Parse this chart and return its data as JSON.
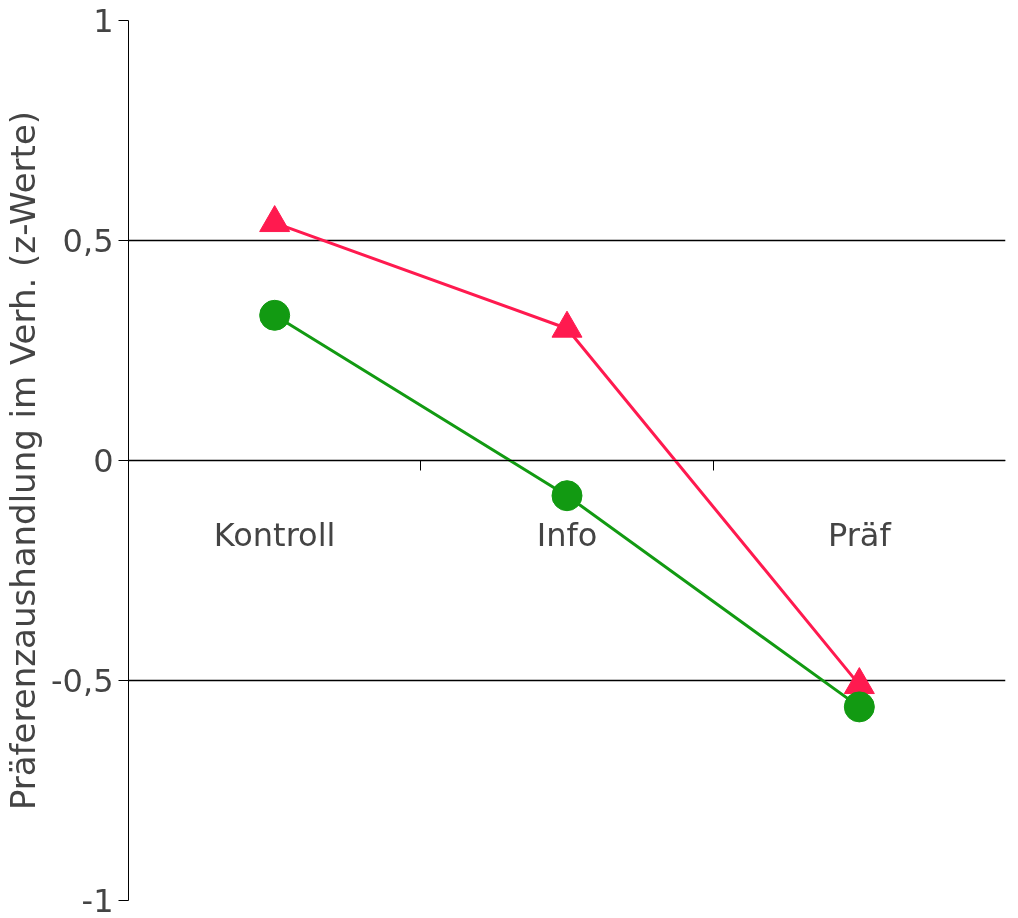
{
  "chart_data": {
    "type": "line",
    "ylabel": "Präferenzaushandlung im Verh. (z-Werte)",
    "categories": [
      "Kontroll",
      "Info",
      "Präf"
    ],
    "series": [
      {
        "color": "#ff1a4f",
        "marker": "triangle",
        "values": [
          0.54,
          0.3,
          -0.51
        ]
      },
      {
        "color": "#129a12",
        "marker": "circle",
        "values": [
          0.33,
          -0.08,
          -0.56
        ]
      }
    ],
    "ylim": [
      -1,
      1
    ],
    "yticks": [
      {
        "value": -1,
        "label": "-1"
      },
      {
        "value": -0.5,
        "label": "-0,5"
      },
      {
        "value": 0,
        "label": "0"
      },
      {
        "value": 0.5,
        "label": "0,5"
      },
      {
        "value": 1,
        "label": "1"
      }
    ],
    "grid": "y"
  }
}
